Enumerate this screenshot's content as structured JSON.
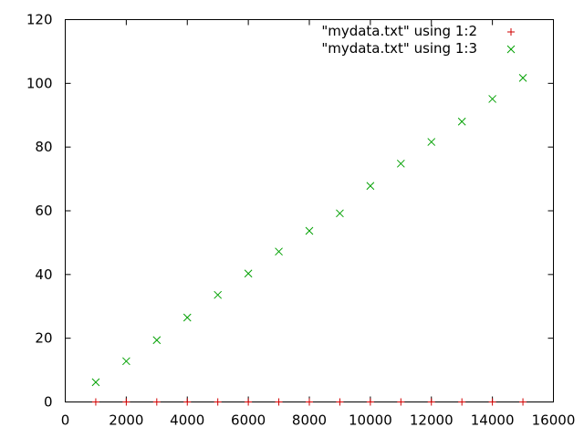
{
  "chart_data": {
    "type": "scatter",
    "title": "",
    "xlabel": "",
    "ylabel": "",
    "xlim": [
      0,
      16000
    ],
    "ylim": [
      0,
      120
    ],
    "x_ticks": [
      0,
      2000,
      4000,
      6000,
      8000,
      10000,
      12000,
      14000,
      16000
    ],
    "y_ticks": [
      0,
      20,
      40,
      60,
      80,
      100,
      120
    ],
    "x_tick_labels": [
      "0",
      "2000",
      "4000",
      "6000",
      "8000",
      "10000",
      "12000",
      "14000",
      "16000"
    ],
    "y_tick_labels": [
      "0",
      "20",
      "40",
      "60",
      "80",
      "100",
      "120"
    ],
    "grid": false,
    "legend_position": "top-right",
    "x": [
      1000,
      2000,
      3000,
      4000,
      5000,
      6000,
      7000,
      8000,
      9000,
      10000,
      11000,
      12000,
      13000,
      14000,
      15000
    ],
    "series": [
      {
        "name": "\"mydata.txt\" using 1:2",
        "marker": "plus",
        "color": "#d00000",
        "values": [
          0,
          0,
          0,
          0,
          0,
          0,
          0,
          0,
          0,
          0,
          0,
          0,
          0,
          0,
          0
        ]
      },
      {
        "name": "\"mydata.txt\" using 1:3",
        "marker": "cross",
        "color": "#00a000",
        "values": [
          6.2,
          12.8,
          19.4,
          26.5,
          33.6,
          40.3,
          47.2,
          53.7,
          59.2,
          67.8,
          74.8,
          81.6,
          88.0,
          95.1,
          101.7
        ]
      }
    ]
  }
}
